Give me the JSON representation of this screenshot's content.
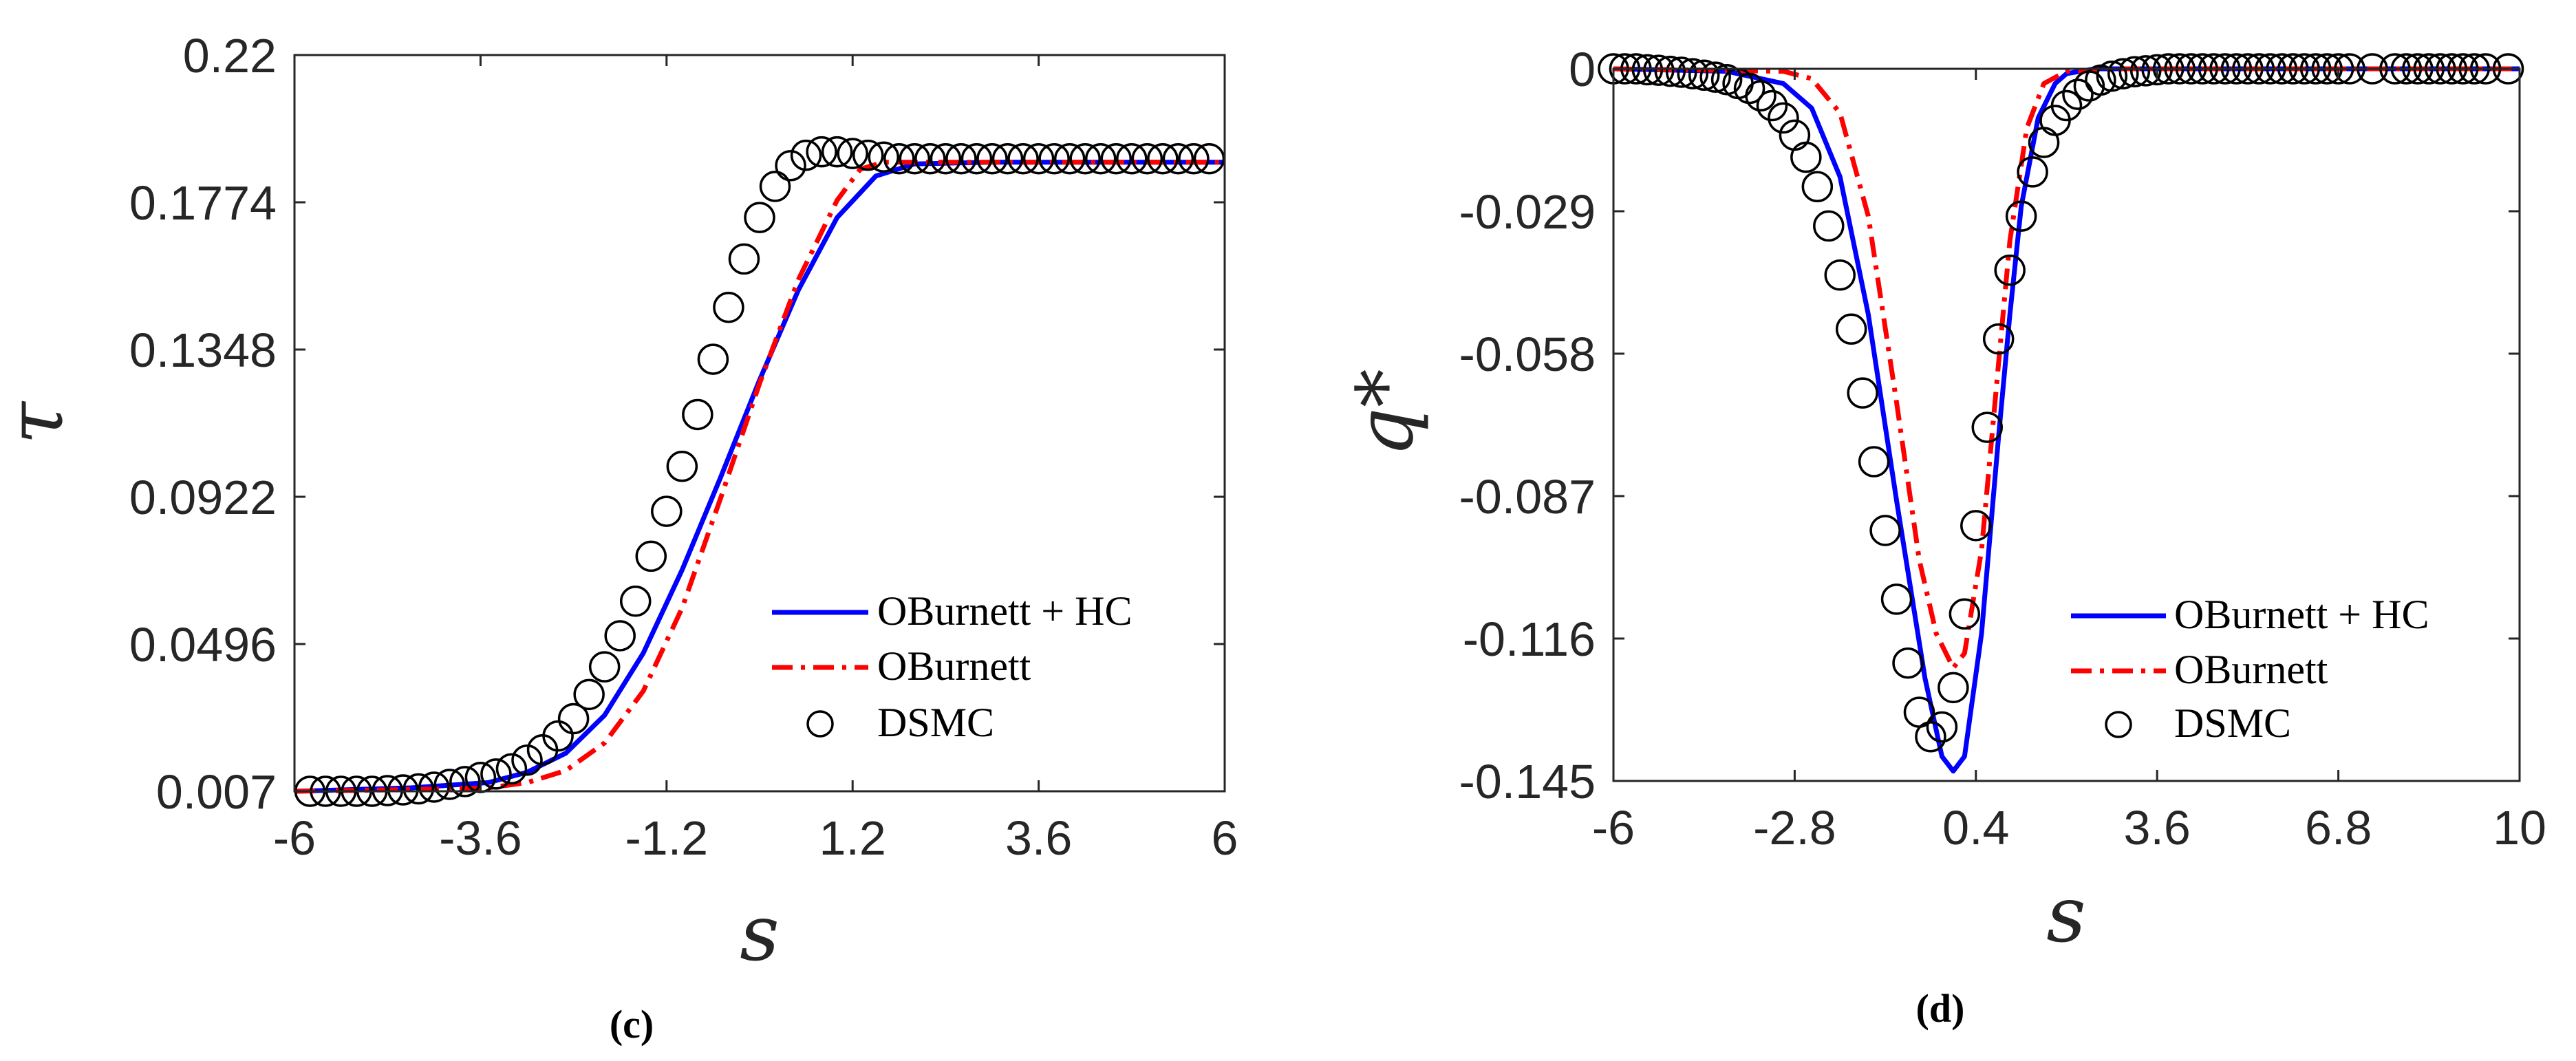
{
  "chart_data": [
    {
      "type": "line",
      "panel_label": "(c)",
      "xlabel": "s",
      "ylabel": "τ",
      "xlim": [
        -6,
        6
      ],
      "ylim": [
        0.007,
        0.22
      ],
      "xticks": [
        -6,
        -3.6,
        -1.2,
        1.2,
        3.6,
        6
      ],
      "xtick_labels": [
        "-6",
        "-3.6",
        "-1.2",
        "1.2",
        "3.6",
        "6"
      ],
      "yticks": [
        0.007,
        0.0496,
        0.0922,
        0.1348,
        0.1774,
        0.22
      ],
      "ytick_labels": [
        "0.007",
        "0.0496",
        "0.0922",
        "0.1348",
        "0.1774",
        "0.22"
      ],
      "legend_position": "bottom-right",
      "series": [
        {
          "name": "OBurnett + HC",
          "style": "solid",
          "color": "#0000ff",
          "x": [
            -6,
            -4.5,
            -3.5,
            -3.0,
            -2.5,
            -2.0,
            -1.5,
            -1.0,
            -0.5,
            0.0,
            0.5,
            1.0,
            1.5,
            2.0,
            3.0,
            4.0,
            5.0,
            6.0
          ],
          "y": [
            0.007,
            0.008,
            0.0095,
            0.0125,
            0.018,
            0.029,
            0.047,
            0.071,
            0.098,
            0.126,
            0.152,
            0.173,
            0.185,
            0.1885,
            0.189,
            0.189,
            0.189,
            0.189
          ]
        },
        {
          "name": "OBurnett",
          "style": "dash-dot",
          "color": "#ff0000",
          "x": [
            -6,
            -4.5,
            -3.5,
            -3.0,
            -2.5,
            -2.0,
            -1.5,
            -1.0,
            -0.5,
            0.0,
            0.5,
            1.0,
            1.3,
            1.6,
            2.0,
            3.0,
            4.0,
            5.0,
            6.0
          ],
          "y": [
            0.007,
            0.0075,
            0.008,
            0.0095,
            0.013,
            0.021,
            0.036,
            0.06,
            0.092,
            0.125,
            0.155,
            0.178,
            0.187,
            0.189,
            0.189,
            0.189,
            0.189,
            0.189,
            0.189
          ]
        },
        {
          "name": "DSMC",
          "style": "circle",
          "color": "#000000",
          "x": [
            -5.8,
            -5.6,
            -5.4,
            -5.2,
            -5.0,
            -4.8,
            -4.6,
            -4.4,
            -4.2,
            -4.0,
            -3.8,
            -3.6,
            -3.4,
            -3.2,
            -3.0,
            -2.8,
            -2.6,
            -2.4,
            -2.2,
            -2.0,
            -1.8,
            -1.6,
            -1.4,
            -1.2,
            -1.0,
            -0.8,
            -0.6,
            -0.4,
            -0.2,
            0.0,
            0.2,
            0.4,
            0.6,
            0.8,
            1.0,
            1.2,
            1.4,
            1.6,
            1.8,
            2.0,
            2.2,
            2.4,
            2.6,
            2.8,
            3.0,
            3.2,
            3.4,
            3.6,
            3.8,
            4.0,
            4.2,
            4.4,
            4.6,
            4.8,
            5.0,
            5.2,
            5.4,
            5.6,
            5.8
          ],
          "y": [
            0.007,
            0.007,
            0.007,
            0.007,
            0.007,
            0.0072,
            0.0074,
            0.0077,
            0.0082,
            0.009,
            0.0098,
            0.011,
            0.012,
            0.0135,
            0.016,
            0.019,
            0.023,
            0.028,
            0.035,
            0.043,
            0.052,
            0.062,
            0.075,
            0.088,
            0.101,
            0.116,
            0.132,
            0.147,
            0.161,
            0.173,
            0.182,
            0.188,
            0.191,
            0.192,
            0.192,
            0.1915,
            0.191,
            0.1905,
            0.19,
            0.19,
            0.19,
            0.19,
            0.19,
            0.19,
            0.19,
            0.19,
            0.19,
            0.19,
            0.19,
            0.19,
            0.19,
            0.19,
            0.19,
            0.19,
            0.19,
            0.19,
            0.19,
            0.19,
            0.19
          ]
        }
      ]
    },
    {
      "type": "line",
      "panel_label": "(d)",
      "xlabel": "s",
      "ylabel": "q*",
      "xlim": [
        -6,
        10
      ],
      "ylim": [
        -0.145,
        0
      ],
      "xticks": [
        -6,
        -2.8,
        0.4,
        3.6,
        6.8,
        10
      ],
      "xtick_labels": [
        "-6",
        "-2.8",
        "0.4",
        "3.6",
        "6.8",
        "10"
      ],
      "yticks": [
        0,
        -0.029,
        -0.058,
        -0.087,
        -0.116,
        -0.145
      ],
      "ytick_labels": [
        "0",
        "-0.029",
        "-0.058",
        "-0.087",
        "-0.116",
        "-0.145"
      ],
      "legend_position": "bottom-right",
      "series": [
        {
          "name": "OBurnett + HC",
          "style": "solid",
          "color": "#0000ff",
          "x": [
            -6,
            -4.0,
            -3.0,
            -2.5,
            -2.0,
            -1.5,
            -1.0,
            -0.5,
            -0.2,
            0.0,
            0.2,
            0.5,
            0.8,
            1.0,
            1.2,
            1.5,
            1.8,
            2.0,
            2.5,
            3.0,
            4.0,
            6.0,
            8.0,
            10.0
          ],
          "y": [
            0.0,
            -0.0005,
            -0.003,
            -0.008,
            -0.022,
            -0.05,
            -0.088,
            -0.124,
            -0.14,
            -0.143,
            -0.14,
            -0.115,
            -0.075,
            -0.05,
            -0.028,
            -0.01,
            -0.003,
            -0.001,
            0.0,
            0.0,
            0.0,
            0.0,
            0.0,
            0.0
          ]
        },
        {
          "name": "OBurnett",
          "style": "dash-dot",
          "color": "#ff0000",
          "x": [
            -6,
            -3.0,
            -2.5,
            -2.0,
            -1.5,
            -1.0,
            -0.6,
            -0.3,
            0.0,
            0.2,
            0.5,
            0.8,
            1.0,
            1.3,
            1.6,
            2.0,
            3.0,
            6.0,
            10.0
          ],
          "y": [
            0.0,
            -0.0005,
            -0.002,
            -0.009,
            -0.03,
            -0.068,
            -0.1,
            -0.115,
            -0.122,
            -0.119,
            -0.098,
            -0.06,
            -0.035,
            -0.012,
            -0.003,
            -0.0005,
            0.0,
            0.0,
            0.0
          ]
        },
        {
          "name": "DSMC",
          "style": "circle",
          "color": "#000000",
          "x": [
            -6.0,
            -5.8,
            -5.6,
            -5.4,
            -5.2,
            -5.0,
            -4.8,
            -4.6,
            -4.4,
            -4.2,
            -4.0,
            -3.8,
            -3.6,
            -3.4,
            -3.2,
            -3.0,
            -2.8,
            -2.6,
            -2.4,
            -2.2,
            -2.0,
            -1.8,
            -1.6,
            -1.4,
            -1.2,
            -1.0,
            -0.8,
            -0.6,
            -0.4,
            -0.2,
            0.0,
            0.2,
            0.4,
            0.6,
            0.8,
            1.0,
            1.2,
            1.4,
            1.6,
            1.8,
            2.0,
            2.2,
            2.4,
            2.6,
            2.8,
            3.0,
            3.2,
            3.4,
            3.6,
            3.8,
            4.0,
            4.2,
            4.4,
            4.6,
            4.8,
            5.0,
            5.2,
            5.4,
            5.6,
            5.8,
            6.0,
            6.2,
            6.4,
            6.6,
            6.8,
            7.0,
            7.4,
            7.8,
            8.0,
            8.2,
            8.4,
            8.6,
            8.8,
            9.0,
            9.2,
            9.4,
            9.8
          ],
          "y": [
            0.0,
            0.0,
            0.0,
            -0.0002,
            -0.0003,
            -0.0005,
            -0.0007,
            -0.001,
            -0.0013,
            -0.0017,
            -0.0022,
            -0.003,
            -0.004,
            -0.0055,
            -0.0075,
            -0.01,
            -0.0135,
            -0.018,
            -0.024,
            -0.032,
            -0.042,
            -0.053,
            -0.066,
            -0.08,
            -0.094,
            -0.108,
            -0.121,
            -0.131,
            -0.136,
            -0.134,
            -0.126,
            -0.111,
            -0.093,
            -0.073,
            -0.055,
            -0.041,
            -0.03,
            -0.021,
            -0.015,
            -0.0105,
            -0.0075,
            -0.0052,
            -0.0035,
            -0.0023,
            -0.0015,
            -0.001,
            -0.0006,
            -0.0004,
            -0.0002,
            0.0,
            0.0,
            0.0,
            0.0,
            0.0,
            0.0,
            0.0,
            0.0,
            0.0,
            0.0,
            0.0,
            0.0,
            0.0,
            0.0,
            0.0,
            0.0,
            0.0,
            0.0,
            0.0,
            0.0,
            0.0,
            0.0,
            0.0,
            0.0,
            0.0,
            0.0,
            0.0,
            0.0
          ]
        }
      ]
    }
  ]
}
